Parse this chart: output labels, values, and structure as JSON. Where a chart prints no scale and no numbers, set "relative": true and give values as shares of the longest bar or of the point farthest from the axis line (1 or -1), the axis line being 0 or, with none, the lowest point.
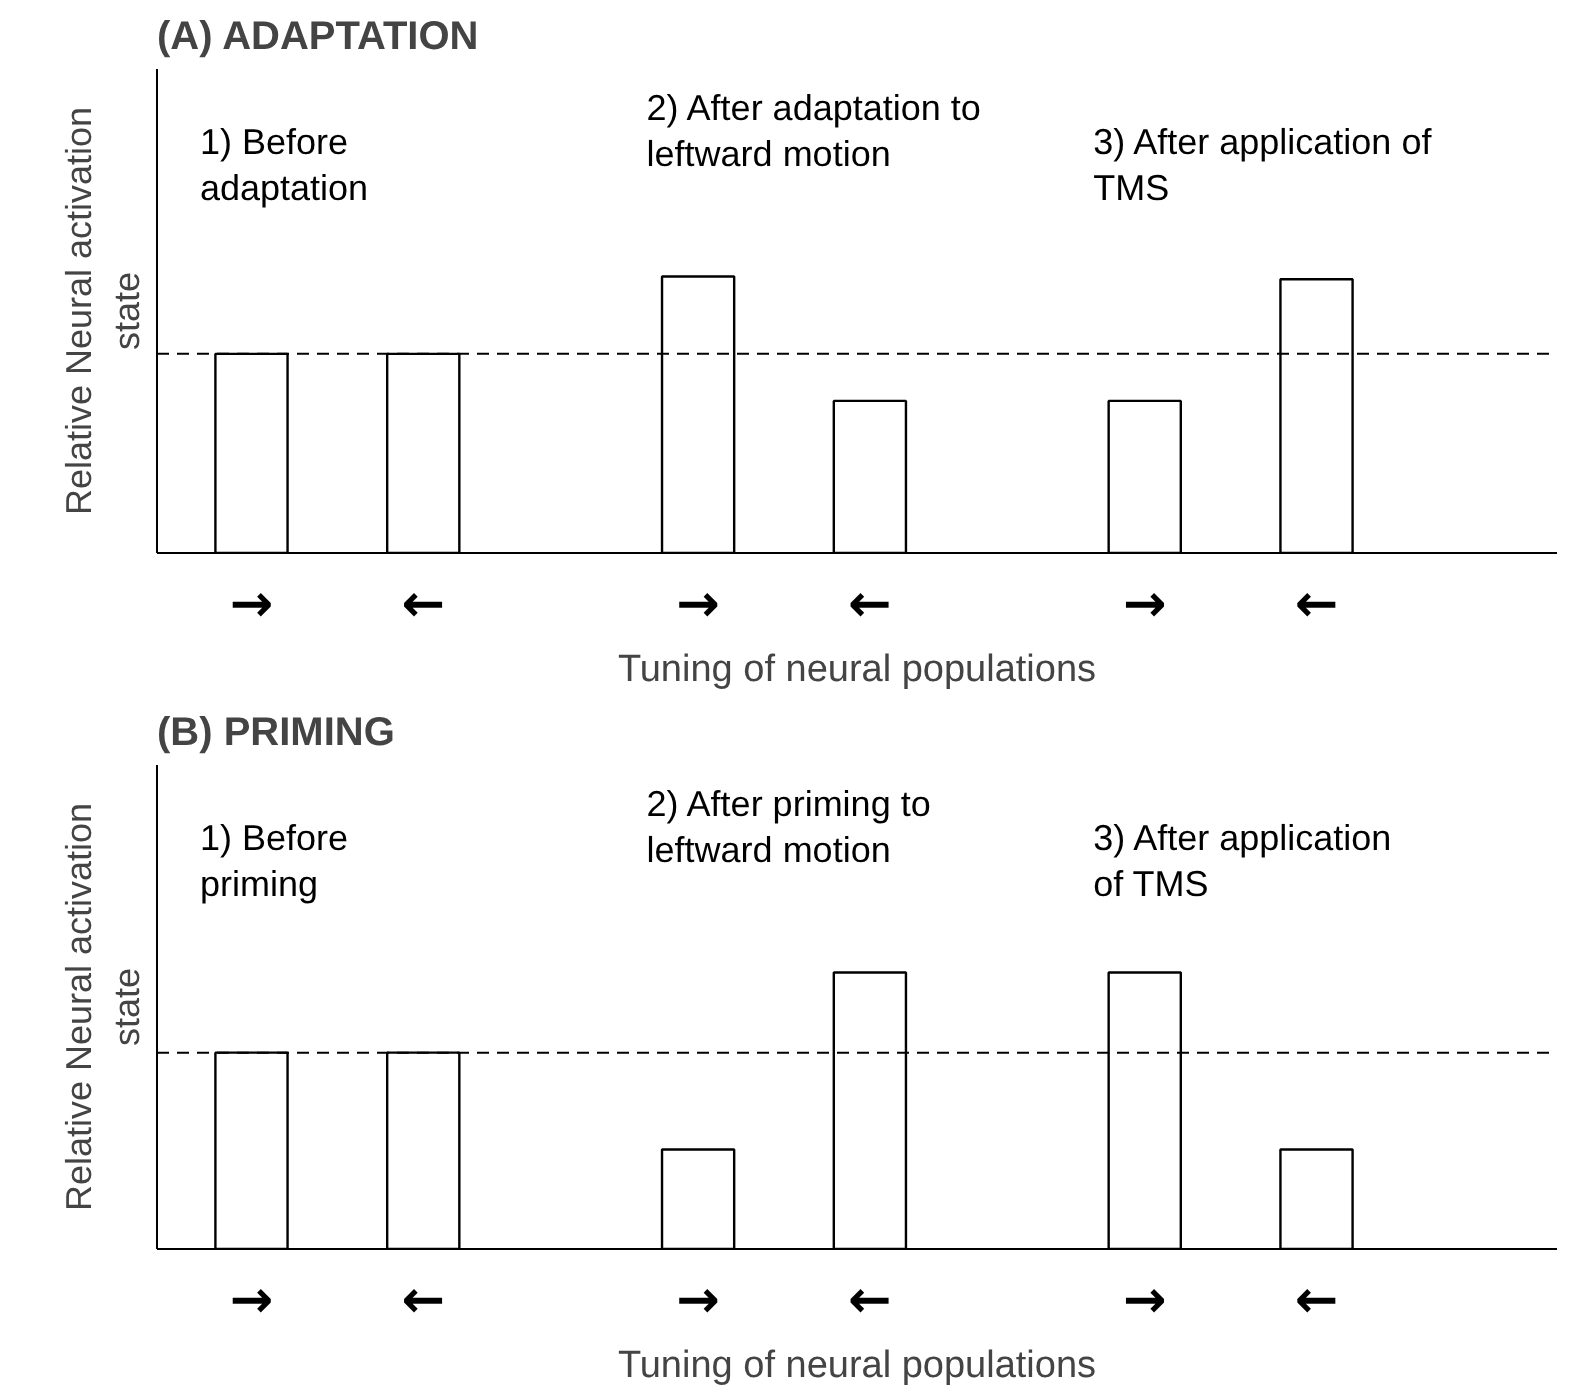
{
  "chart_data": [
    {
      "type": "bar",
      "title": "(A)  ADAPTATION",
      "xlabel": "Tuning of neural populations",
      "ylabel": "Relative Neural activation\nstate",
      "relative": true,
      "color": "#ffffff",
      "categories": [
        "→",
        "←",
        "→",
        "←",
        "→",
        "←"
      ],
      "values": [
        0.72,
        0.72,
        1.0,
        0.55,
        0.55,
        0.99
      ],
      "ref_lines": [
        {
          "axis": "y",
          "value": 0.72,
          "line_style": "dashed",
          "color": "#000000"
        }
      ],
      "annotations": [
        "1) Before\nadaptation",
        "2) After adaptation to\nleftward motion",
        "3) After application of\nTMS"
      ]
    },
    {
      "type": "bar",
      "title": "(B)  PRIMING",
      "xlabel": "Tuning of neural populations",
      "ylabel": "Relative Neural activation\nstate",
      "relative": true,
      "color": "#ffffff",
      "categories": [
        "→",
        "←",
        "→",
        "←",
        "→",
        "←"
      ],
      "values": [
        0.71,
        0.71,
        0.36,
        1.0,
        1.0,
        0.36
      ],
      "ref_lines": [
        {
          "axis": "y",
          "value": 0.71,
          "line_style": "dashed",
          "color": "#000000"
        }
      ],
      "annotations": [
        "1) Before\npriming",
        "2) After priming to\nleftward motion",
        "3) After application\nof TMS"
      ]
    }
  ]
}
